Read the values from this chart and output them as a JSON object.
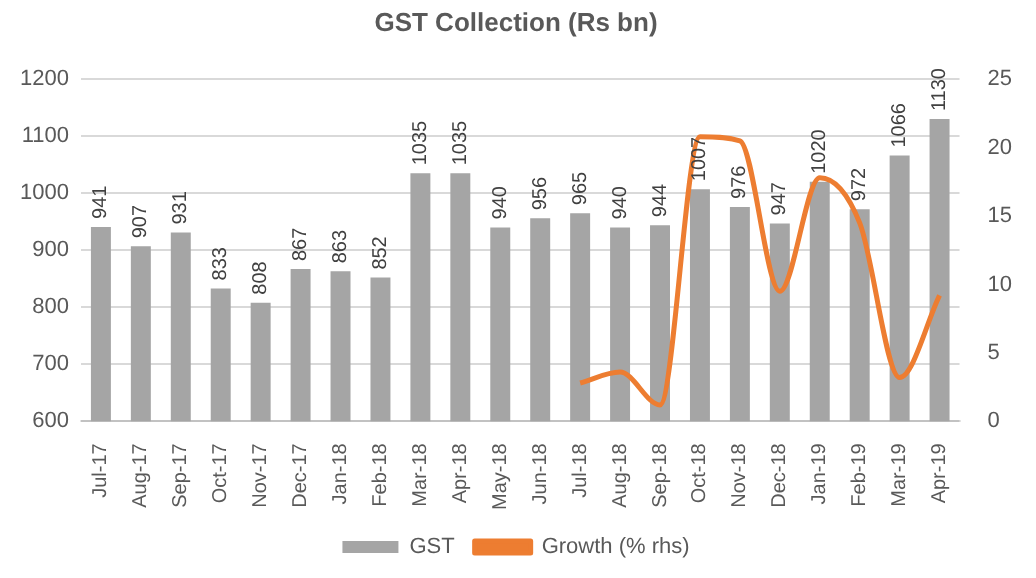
{
  "chart_data": {
    "type": "bar",
    "title": "GST Collection (Rs bn)",
    "categories": [
      "Jul-17",
      "Aug-17",
      "Sep-17",
      "Oct-17",
      "Nov-17",
      "Dec-17",
      "Jan-18",
      "Feb-18",
      "Mar-18",
      "Apr-18",
      "May-18",
      "Jun-18",
      "Jul-18",
      "Aug-18",
      "Sep-18",
      "Oct-18",
      "Nov-18",
      "Dec-18",
      "Jan-19",
      "Feb-19",
      "Mar-19",
      "Apr-19"
    ],
    "series": [
      {
        "name": "GST",
        "color": "#a5a5a5",
        "values": [
          941,
          907,
          931,
          833,
          808,
          867,
          863,
          852,
          1035,
          1035,
          940,
          956,
          965,
          940,
          944,
          1007,
          976,
          947,
          1020,
          972,
          1066,
          1130
        ],
        "value_labels": [
          "941",
          "907",
          "931",
          "833",
          "808",
          "867",
          "863",
          "852",
          "1035",
          "1035",
          "940",
          "956",
          "965",
          "940",
          "944",
          "1007",
          "976",
          "947",
          "1020",
          "972",
          "1066",
          "1130"
        ]
      },
      {
        "name": "Growth (% rhs)",
        "type": "line",
        "axis": "y2",
        "color": "#ed7d31",
        "values": [
          null,
          null,
          null,
          null,
          null,
          null,
          null,
          null,
          null,
          null,
          null,
          null,
          2.8,
          3.6,
          1.2,
          20.8,
          20.5,
          9.5,
          17.8,
          14.5,
          3.2,
          9.2
        ]
      }
    ],
    "ylim": [
      600,
      1200
    ],
    "yticks": [
      600,
      700,
      800,
      900,
      1000,
      1100,
      1200
    ],
    "y2lim": [
      0,
      25
    ],
    "y2ticks": [
      0,
      5,
      10,
      15,
      20,
      25
    ],
    "grid": "y",
    "legend": "bottom",
    "marker": "none",
    "line_style": "solid"
  }
}
